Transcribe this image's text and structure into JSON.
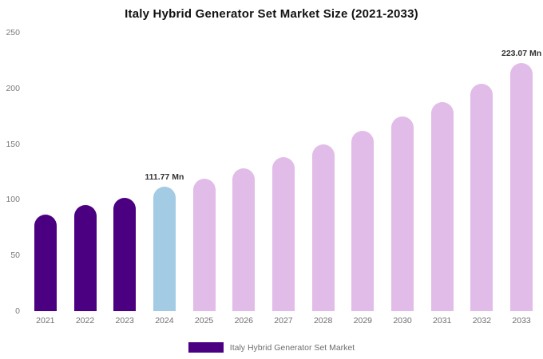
{
  "chart_data": {
    "type": "bar",
    "title": "Italy Hybrid Generator Set Market Size (2021-2033)",
    "xlabel": "",
    "ylabel": "",
    "ylim": [
      0,
      250
    ],
    "yticks": [
      0,
      50,
      100,
      150,
      200,
      250
    ],
    "grid": false,
    "legend_position": "bottom",
    "categories": [
      "2021",
      "2022",
      "2023",
      "2024",
      "2025",
      "2026",
      "2027",
      "2028",
      "2029",
      "2030",
      "2031",
      "2032",
      "2033"
    ],
    "values": [
      87,
      95,
      102,
      111.77,
      119,
      128,
      138,
      150,
      162,
      175,
      188,
      204,
      223.07
    ],
    "bar_colors": [
      "#4B0082",
      "#4B0082",
      "#4B0082",
      "#A3CBE3",
      "#E2BCE8",
      "#E2BCE8",
      "#E2BCE8",
      "#E2BCE8",
      "#E2BCE8",
      "#E2BCE8",
      "#E2BCE8",
      "#E2BCE8",
      "#E2BCE8"
    ],
    "annotations": [
      {
        "category": "2024",
        "text": "111.77 Mn"
      },
      {
        "category": "2033",
        "text": "223.07 Mn"
      }
    ]
  },
  "legend": {
    "swatch_color": "#4B0082",
    "label": "Italy Hybrid Generator Set Market"
  }
}
